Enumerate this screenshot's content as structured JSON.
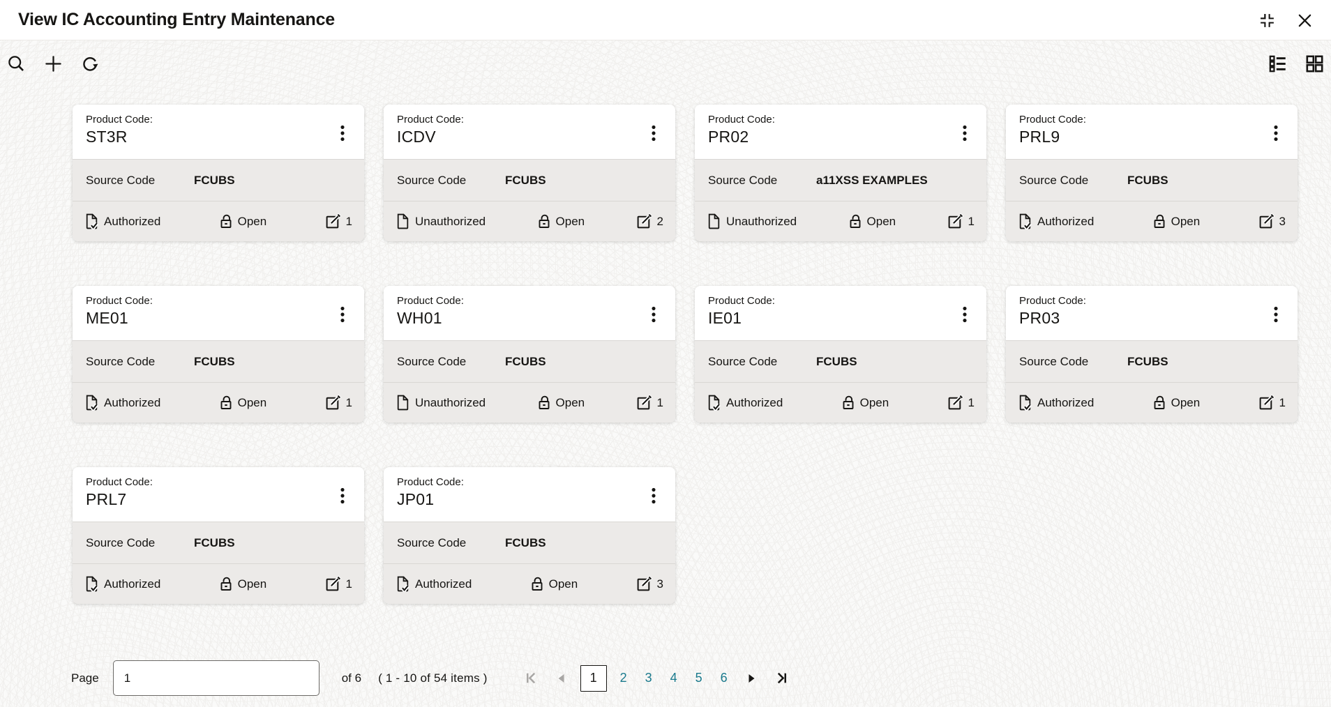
{
  "window": {
    "title": "View IC Accounting Entry Maintenance",
    "controls": {
      "collapse_icon": "collapse-window",
      "close_icon": "close-window"
    }
  },
  "toolbar": {
    "left_icons": [
      "search-icon",
      "add-icon",
      "refresh-icon"
    ],
    "right_icons": [
      "list-view-icon",
      "grid-view-icon"
    ]
  },
  "card_labels": {
    "product": "Product Code:",
    "source": "Source Code"
  },
  "cards": [
    {
      "code": "ST3R",
      "source": "FCUBS",
      "auth_status": "Authorized",
      "record_status": "Open",
      "mod_count": "1"
    },
    {
      "code": "ICDV",
      "source": "FCUBS",
      "auth_status": "Unauthorized",
      "record_status": "Open",
      "mod_count": "2"
    },
    {
      "code": "PR02",
      "source": "a11XSS EXAMPLES",
      "auth_status": "Unauthorized",
      "record_status": "Open",
      "mod_count": "1"
    },
    {
      "code": "PRL9",
      "source": "FCUBS",
      "auth_status": "Authorized",
      "record_status": "Open",
      "mod_count": "3"
    },
    {
      "code": "ME01",
      "source": "FCUBS",
      "auth_status": "Authorized",
      "record_status": "Open",
      "mod_count": "1"
    },
    {
      "code": "WH01",
      "source": "FCUBS",
      "auth_status": "Unauthorized",
      "record_status": "Open",
      "mod_count": "1"
    },
    {
      "code": "IE01",
      "source": "FCUBS",
      "auth_status": "Authorized",
      "record_status": "Open",
      "mod_count": "1"
    },
    {
      "code": "PR03",
      "source": "FCUBS",
      "auth_status": "Authorized",
      "record_status": "Open",
      "mod_count": "1"
    },
    {
      "code": "PRL7",
      "source": "FCUBS",
      "auth_status": "Authorized",
      "record_status": "Open",
      "mod_count": "1"
    },
    {
      "code": "JP01",
      "source": "FCUBS",
      "auth_status": "Authorized",
      "record_status": "Open",
      "mod_count": "3"
    }
  ],
  "pagination": {
    "page_label": "Page",
    "page_value": "1",
    "of_label": "of 6",
    "items_label": "( 1 - 10 of 54 items )",
    "pages": [
      "1",
      "2",
      "3",
      "4",
      "5",
      "6"
    ],
    "current_page": "1",
    "first_enabled": false,
    "prev_enabled": false,
    "next_enabled": true,
    "last_enabled": true
  },
  "colors": {
    "text": "#161513",
    "accent_teal": "#19798c",
    "card_row_gray": "#eceae8",
    "separator": "#d9d7d4",
    "disabled_gray": "#a9a7a5",
    "background": "#fafaf9"
  }
}
